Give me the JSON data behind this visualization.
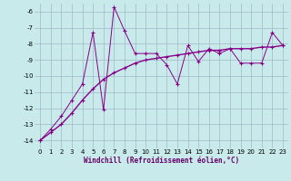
{
  "line1_x": [
    0,
    1,
    2,
    3,
    4,
    5,
    6,
    7,
    8,
    9,
    10,
    11,
    12,
    13,
    14,
    15,
    16,
    17,
    18,
    19,
    20,
    21,
    22,
    23
  ],
  "line1_y": [
    -14.0,
    -13.3,
    -12.5,
    -11.5,
    -10.5,
    -7.3,
    -12.1,
    -5.7,
    -7.2,
    -8.6,
    -8.6,
    -8.6,
    -9.3,
    -10.5,
    -8.1,
    -9.1,
    -8.3,
    -8.6,
    -8.3,
    -9.2,
    -9.2,
    -9.2,
    -7.3,
    -8.1
  ],
  "line2_x": [
    0,
    1,
    2,
    3,
    4,
    5,
    6,
    7,
    8,
    9,
    10,
    11,
    12,
    13,
    14,
    15,
    16,
    17,
    18,
    19,
    20,
    21,
    22,
    23
  ],
  "line2_y": [
    -14.0,
    -13.5,
    -13.0,
    -12.3,
    -11.5,
    -10.8,
    -10.2,
    -9.8,
    -9.5,
    -9.2,
    -9.0,
    -8.9,
    -8.8,
    -8.7,
    -8.6,
    -8.5,
    -8.4,
    -8.4,
    -8.3,
    -8.3,
    -8.3,
    -8.2,
    -8.2,
    -8.1
  ],
  "line_color": "#880088",
  "bg_color": "#c8eaea",
  "grid_color": "#a0b8c8",
  "xlabel": "Windchill (Refroidissement éolien,°C)",
  "xlim": [
    -0.5,
    23.5
  ],
  "ylim": [
    -14.5,
    -5.5
  ],
  "yticks": [
    -14,
    -13,
    -12,
    -11,
    -10,
    -9,
    -8,
    -7,
    -6
  ],
  "xticks": [
    0,
    1,
    2,
    3,
    4,
    5,
    6,
    7,
    8,
    9,
    10,
    11,
    12,
    13,
    14,
    15,
    16,
    17,
    18,
    19,
    20,
    21,
    22,
    23
  ],
  "marker": "+"
}
